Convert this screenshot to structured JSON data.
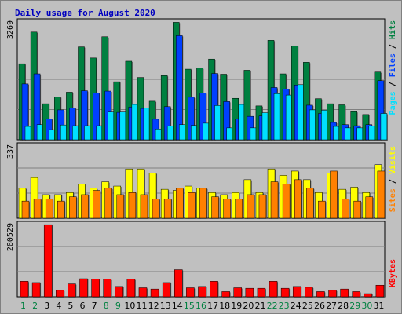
{
  "title": "Daily usage for August 2020",
  "colors": {
    "background": "#c0c0c0",
    "plot_bg": "#c0c0c0",
    "title": "#0000c0",
    "hits": "#008040",
    "files": "#0040ff",
    "pages": "#00e0ff",
    "visits": "#ffff00",
    "sites": "#ff8000",
    "kbytes": "#ff0000",
    "weekend_day": "#008040",
    "weekday": "#000000"
  },
  "legend": {
    "top": [
      "Pages",
      "Files",
      "Hits"
    ],
    "middle": [
      "Sites",
      "Visits"
    ],
    "bottom": [
      "KBytes"
    ],
    "separator": "/"
  },
  "chart_data": {
    "type": "bar",
    "categories": [
      "1",
      "2",
      "3",
      "4",
      "5",
      "6",
      "7",
      "8",
      "9",
      "10",
      "11",
      "12",
      "13",
      "14",
      "15",
      "16",
      "17",
      "18",
      "19",
      "20",
      "21",
      "22",
      "23",
      "24",
      "25",
      "26",
      "27",
      "28",
      "29",
      "30",
      "31"
    ],
    "weekend_days": [
      "1",
      "2",
      "8",
      "9",
      "15",
      "16",
      "22",
      "23",
      "29",
      "30"
    ],
    "panels": [
      {
        "name": "hits-files-pages",
        "ymax_label": "3269",
        "ymax": 3269,
        "series": [
          {
            "name": "Hits",
            "values": [
              2110,
              2990,
              1000,
              1190,
              1320,
              2580,
              2270,
              2860,
              1610,
              2180,
              1730,
              1070,
              1780,
              3260,
              1960,
              1990,
              2240,
              1820,
              1150,
              1930,
              940,
              2760,
              1830,
              2610,
              2150,
              1140,
              1000,
              970,
              780,
              700,
              1880
            ]
          },
          {
            "name": "Files",
            "values": [
              1550,
              1830,
              580,
              830,
              880,
              1360,
              1300,
              1350,
              760,
              910,
              870,
              570,
              920,
              2890,
              1180,
              1300,
              1840,
              1060,
              580,
              650,
              660,
              1450,
              1410,
              1520,
              960,
              730,
              480,
              420,
              390,
              420,
              1640
            ]
          },
          {
            "name": "Pages",
            "values": [
              370,
              420,
              280,
              410,
              390,
              390,
              390,
              770,
              770,
              980,
              880,
              300,
              380,
              420,
              400,
              460,
              950,
              330,
              980,
              330,
              750,
              1280,
              1240,
              1530,
              830,
              820,
              370,
              330,
              330,
              380,
              730
            ]
          }
        ]
      },
      {
        "name": "visits-sites",
        "ymax_label": "337",
        "ymax": 337,
        "series": [
          {
            "name": "Visits",
            "values": [
              140,
              190,
              110,
              110,
              120,
              160,
              140,
              170,
              150,
              230,
              230,
              210,
              135,
              130,
              150,
              140,
              120,
              110,
              120,
              180,
              120,
              230,
              200,
              220,
              180,
              120,
              210,
              135,
              145,
              120,
              250
            ]
          },
          {
            "name": "Sites",
            "values": [
              80,
              90,
              90,
              80,
              100,
              110,
              130,
              140,
              110,
              120,
              110,
              90,
              90,
              140,
              120,
              140,
              100,
              90,
              90,
              110,
              110,
              170,
              160,
              180,
              140,
              80,
              220,
              90,
              80,
              100,
              220
            ]
          }
        ]
      },
      {
        "name": "kbytes",
        "ymax_label": "280529",
        "ymax": 280529,
        "series": [
          {
            "name": "KBytes",
            "values": [
              60000,
              55000,
              280000,
              25000,
              50000,
              70000,
              68000,
              68000,
              40000,
              68000,
              35000,
              30000,
              55000,
              105000,
              35000,
              40000,
              60000,
              20000,
              35000,
              33000,
              33000,
              60000,
              33000,
              40000,
              37000,
              20000,
              25000,
              30000,
              20000,
              12000,
              45000
            ]
          }
        ]
      }
    ]
  }
}
